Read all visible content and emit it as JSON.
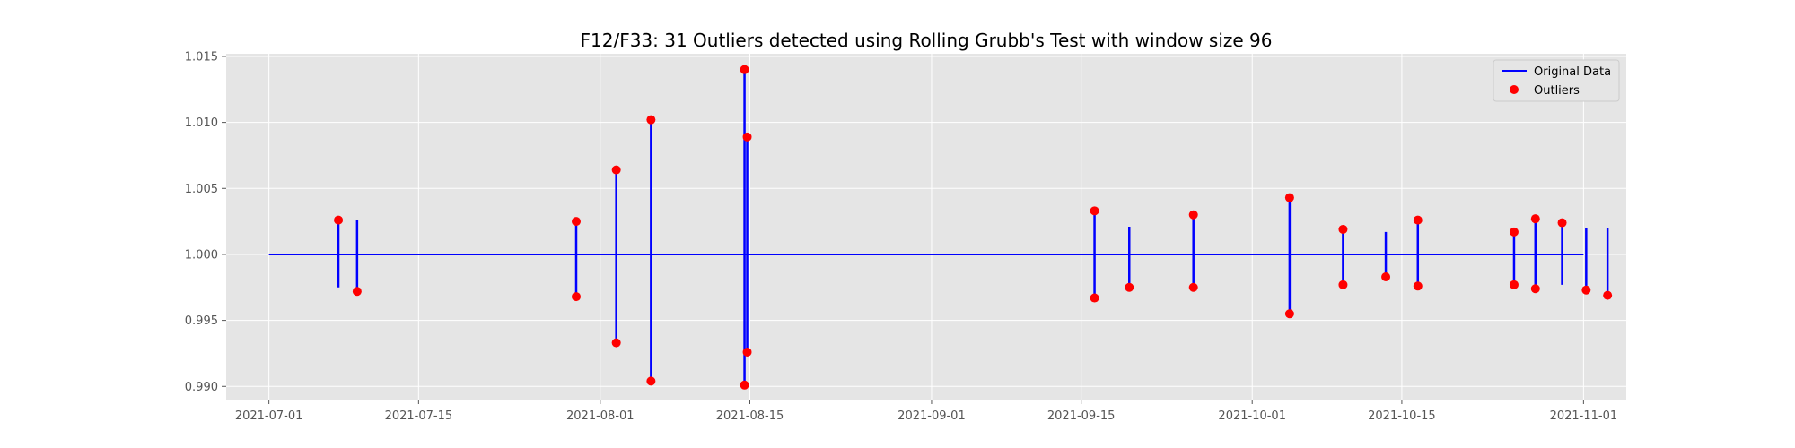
{
  "chart_data": {
    "type": "line",
    "title": "F12/F33: 31 Outliers detected using Rolling Grubb's Test with window size 96",
    "xlabel": "",
    "ylabel": "",
    "xlim": [
      "2021-06-27",
      "2021-11-05"
    ],
    "ylim": [
      0.989,
      1.0152
    ],
    "x_ticks": [
      "2021-07-01",
      "2021-07-15",
      "2021-08-01",
      "2021-08-15",
      "2021-09-01",
      "2021-09-15",
      "2021-10-01",
      "2021-10-15",
      "2021-11-01"
    ],
    "y_ticks": [
      "0.990",
      "0.995",
      "1.000",
      "1.005",
      "1.010",
      "1.015"
    ],
    "grid": true,
    "legend_position": "top-right",
    "colors": {
      "line": "#0000ff",
      "outlier": "#ff0000",
      "plot_bg": "#e5e5e5",
      "grid": "#ffffff"
    },
    "series": [
      {
        "name": "Original Data",
        "type": "line",
        "baseline": {
          "x": [
            "2021-07-01",
            "2021-11-01"
          ],
          "y": 1.0
        },
        "spikes": [
          {
            "x": "2021-07-07 12:00",
            "y": [
              0.9975,
              1.0026
            ]
          },
          {
            "x": "2021-07-09 06:00",
            "y": [
              0.9972,
              1.0026
            ]
          },
          {
            "x": "2021-07-29 18:00",
            "y": [
              0.9968,
              1.0025
            ]
          },
          {
            "x": "2021-08-02 12:00",
            "y": [
              0.9933,
              1.0064
            ]
          },
          {
            "x": "2021-08-05 18:00",
            "y": [
              0.9904,
              1.0102
            ]
          },
          {
            "x": "2021-08-14 12:00",
            "y": [
              0.9901,
              1.014
            ]
          },
          {
            "x": "2021-08-14 18:00",
            "y": [
              0.9926,
              1.0089
            ]
          },
          {
            "x": "2021-09-16 06:00",
            "y": [
              0.9967,
              1.0033
            ]
          },
          {
            "x": "2021-09-19 12:00",
            "y": [
              0.9975,
              1.0021
            ]
          },
          {
            "x": "2021-09-25 12:00",
            "y": [
              0.9975,
              1.003
            ]
          },
          {
            "x": "2021-10-04 12:00",
            "y": [
              0.9955,
              1.0043
            ]
          },
          {
            "x": "2021-10-09 12:00",
            "y": [
              0.9977,
              1.0019
            ]
          },
          {
            "x": "2021-10-13 12:00",
            "y": [
              0.9983,
              1.0017
            ]
          },
          {
            "x": "2021-10-16 12:00",
            "y": [
              0.9976,
              1.0026
            ]
          },
          {
            "x": "2021-10-25 12:00",
            "y": [
              0.9977,
              1.0017
            ]
          },
          {
            "x": "2021-10-27 12:00",
            "y": [
              0.9974,
              1.0027
            ]
          },
          {
            "x": "2021-10-30 00:00",
            "y": [
              0.9977,
              1.0024
            ]
          },
          {
            "x": "2021-11-01 06:00",
            "y": [
              0.9973,
              1.002
            ]
          },
          {
            "x": "2021-11-03 06:00",
            "y": [
              0.9969,
              1.002
            ]
          }
        ]
      },
      {
        "name": "Outliers",
        "type": "scatter",
        "points": [
          {
            "x": "2021-07-07 12:00",
            "y": 1.0026
          },
          {
            "x": "2021-07-09 06:00",
            "y": 0.9972
          },
          {
            "x": "2021-07-29 18:00",
            "y": 1.0025
          },
          {
            "x": "2021-07-29 18:00",
            "y": 0.9968
          },
          {
            "x": "2021-08-02 12:00",
            "y": 1.0064
          },
          {
            "x": "2021-08-02 12:00",
            "y": 0.9933
          },
          {
            "x": "2021-08-05 18:00",
            "y": 1.0102
          },
          {
            "x": "2021-08-05 18:00",
            "y": 0.9904
          },
          {
            "x": "2021-08-14 12:00",
            "y": 1.014
          },
          {
            "x": "2021-08-14 12:00",
            "y": 0.9901
          },
          {
            "x": "2021-08-14 18:00",
            "y": 1.0089
          },
          {
            "x": "2021-08-14 18:00",
            "y": 0.9926
          },
          {
            "x": "2021-09-16 06:00",
            "y": 1.0033
          },
          {
            "x": "2021-09-16 06:00",
            "y": 0.9967
          },
          {
            "x": "2021-09-19 12:00",
            "y": 0.9975
          },
          {
            "x": "2021-09-25 12:00",
            "y": 1.003
          },
          {
            "x": "2021-09-25 12:00",
            "y": 0.9975
          },
          {
            "x": "2021-10-04 12:00",
            "y": 1.0043
          },
          {
            "x": "2021-10-04 12:00",
            "y": 0.9955
          },
          {
            "x": "2021-10-09 12:00",
            "y": 1.0019
          },
          {
            "x": "2021-10-09 12:00",
            "y": 0.9977
          },
          {
            "x": "2021-10-13 12:00",
            "y": 0.9983
          },
          {
            "x": "2021-10-16 12:00",
            "y": 1.0026
          },
          {
            "x": "2021-10-16 12:00",
            "y": 0.9976
          },
          {
            "x": "2021-10-25 12:00",
            "y": 1.0017
          },
          {
            "x": "2021-10-25 12:00",
            "y": 0.9977
          },
          {
            "x": "2021-10-27 12:00",
            "y": 1.0027
          },
          {
            "x": "2021-10-27 12:00",
            "y": 0.9974
          },
          {
            "x": "2021-10-30 00:00",
            "y": 1.0024
          },
          {
            "x": "2021-11-01 06:00",
            "y": 0.9973
          },
          {
            "x": "2021-11-03 06:00",
            "y": 0.9969
          }
        ]
      }
    ]
  }
}
